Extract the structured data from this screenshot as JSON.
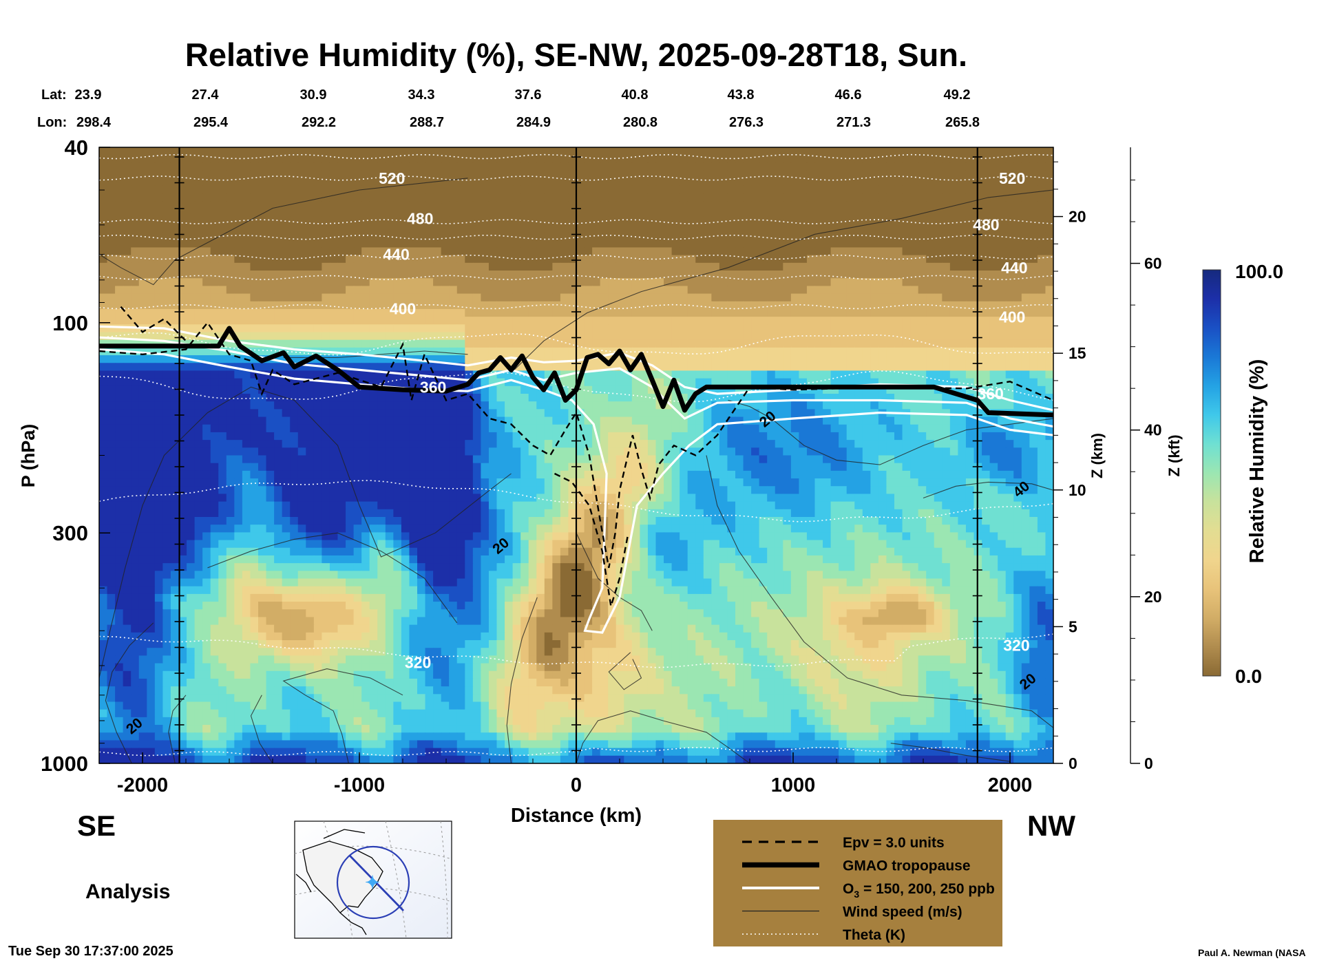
{
  "chart_data": {
    "type": "heatmap",
    "title": "Relative Humidity (%), SE-NW, 2025-09-28T18, Sun.",
    "xlabel": "Distance (km)",
    "ylabel": "P (hPa)",
    "xlim": [
      -2200,
      2200
    ],
    "x_ticks": [
      -2000,
      -1000,
      0,
      1000,
      2000
    ],
    "y_scale": "log",
    "ylim": [
      1000,
      40
    ],
    "y_ticks": [
      40,
      100,
      300,
      1000
    ],
    "z_km_label": "Z (km)",
    "z_km_ticks": [
      0,
      5,
      10,
      15,
      20
    ],
    "z_kft_label": "Z (kft)",
    "z_kft_ticks": [
      0,
      20,
      40,
      60
    ],
    "lat_label": "Lat:",
    "lon_label": "Lon:",
    "lat": [
      "23.9",
      "27.4",
      "30.9",
      "34.3",
      "37.6",
      "40.8",
      "43.8",
      "46.6",
      "49.2"
    ],
    "lon": [
      "298.4",
      "295.4",
      "292.2",
      "288.7",
      "284.9",
      "280.8",
      "276.3",
      "271.3",
      "265.8"
    ],
    "colorbar": {
      "label": "Relative Humidity (%)",
      "max_label": "100.0",
      "min_label": "0.0",
      "range": [
        0,
        100
      ],
      "colors": [
        "#8a6a34",
        "#b08c4e",
        "#d2ad66",
        "#e8c37a",
        "#f0d58d",
        "#e3dd92",
        "#c8e29c",
        "#9be6b2",
        "#6fe0d2",
        "#3fc8ea",
        "#24a2e4",
        "#1a78d6",
        "#1a50c4",
        "#1c2fa8",
        "#162a7e"
      ]
    },
    "theta_labels": [
      {
        "text": "520",
        "x": -850,
        "p": 47
      },
      {
        "text": "480",
        "x": -720,
        "p": 58
      },
      {
        "text": "440",
        "x": -830,
        "p": 70
      },
      {
        "text": "400",
        "x": -800,
        "p": 93
      },
      {
        "text": "360",
        "x": -660,
        "p": 140
      },
      {
        "text": "320",
        "x": -730,
        "p": 590
      },
      {
        "text": "520",
        "x": 2010,
        "p": 47
      },
      {
        "text": "480",
        "x": 1890,
        "p": 60
      },
      {
        "text": "440",
        "x": 2020,
        "p": 75
      },
      {
        "text": "400",
        "x": 2010,
        "p": 97
      },
      {
        "text": "360",
        "x": 1910,
        "p": 145
      },
      {
        "text": "320",
        "x": 2030,
        "p": 540
      }
    ],
    "wind_labels": [
      {
        "text": "20",
        "x": 880,
        "p": 165
      },
      {
        "text": "40",
        "x": 2050,
        "p": 238
      },
      {
        "text": "20",
        "x": -350,
        "p": 320
      },
      {
        "text": "20",
        "x": -2040,
        "p": 820
      },
      {
        "text": "20",
        "x": 2080,
        "p": 650
      }
    ],
    "tropopause": {
      "x": [
        -2200,
        -1650,
        -1600,
        -1550,
        -1450,
        -1350,
        -1300,
        -1200,
        -1100,
        -1000,
        -800,
        -600,
        -500,
        -450,
        -400,
        -350,
        -300,
        -250,
        -200,
        -150,
        -100,
        -50,
        0,
        50,
        100,
        150,
        200,
        250,
        300,
        350,
        400,
        450,
        500,
        550,
        600,
        650,
        1650,
        1850,
        1900,
        2200
      ],
      "p": [
        113,
        113,
        103,
        113,
        122,
        117,
        126,
        119,
        128,
        140,
        142,
        143,
        138,
        130,
        128,
        120,
        128,
        119,
        133,
        142,
        130,
        150,
        142,
        120,
        118,
        124,
        116,
        128,
        118,
        135,
        155,
        135,
        158,
        145,
        140,
        140,
        140,
        150,
        160,
        162
      ]
    },
    "legend": [
      {
        "label": "Epv = 3.0 units",
        "style": "dashed"
      },
      {
        "label": "GMAO tropopause",
        "style": "thick"
      },
      {
        "label": "O",
        "sub": "3",
        "suffix": " = 150, 200, 250 ppb",
        "style": "white"
      },
      {
        "label": "Wind speed (m/s)",
        "style": "thin"
      },
      {
        "label": "Theta (K)",
        "style": "dotted"
      }
    ]
  },
  "labels": {
    "se": "SE",
    "nw": "NW",
    "analysis": "Analysis",
    "timestamp": "Tue Sep 30 17:37:00 2025",
    "credit": "Paul A. Newman (NASA"
  },
  "colors": {
    "legend_bg": "#a6803e",
    "tropopause": "#000000",
    "ozone": "#ffffff",
    "map_circle": "#2b3fb5",
    "map_marker": "#3fa9f5"
  }
}
